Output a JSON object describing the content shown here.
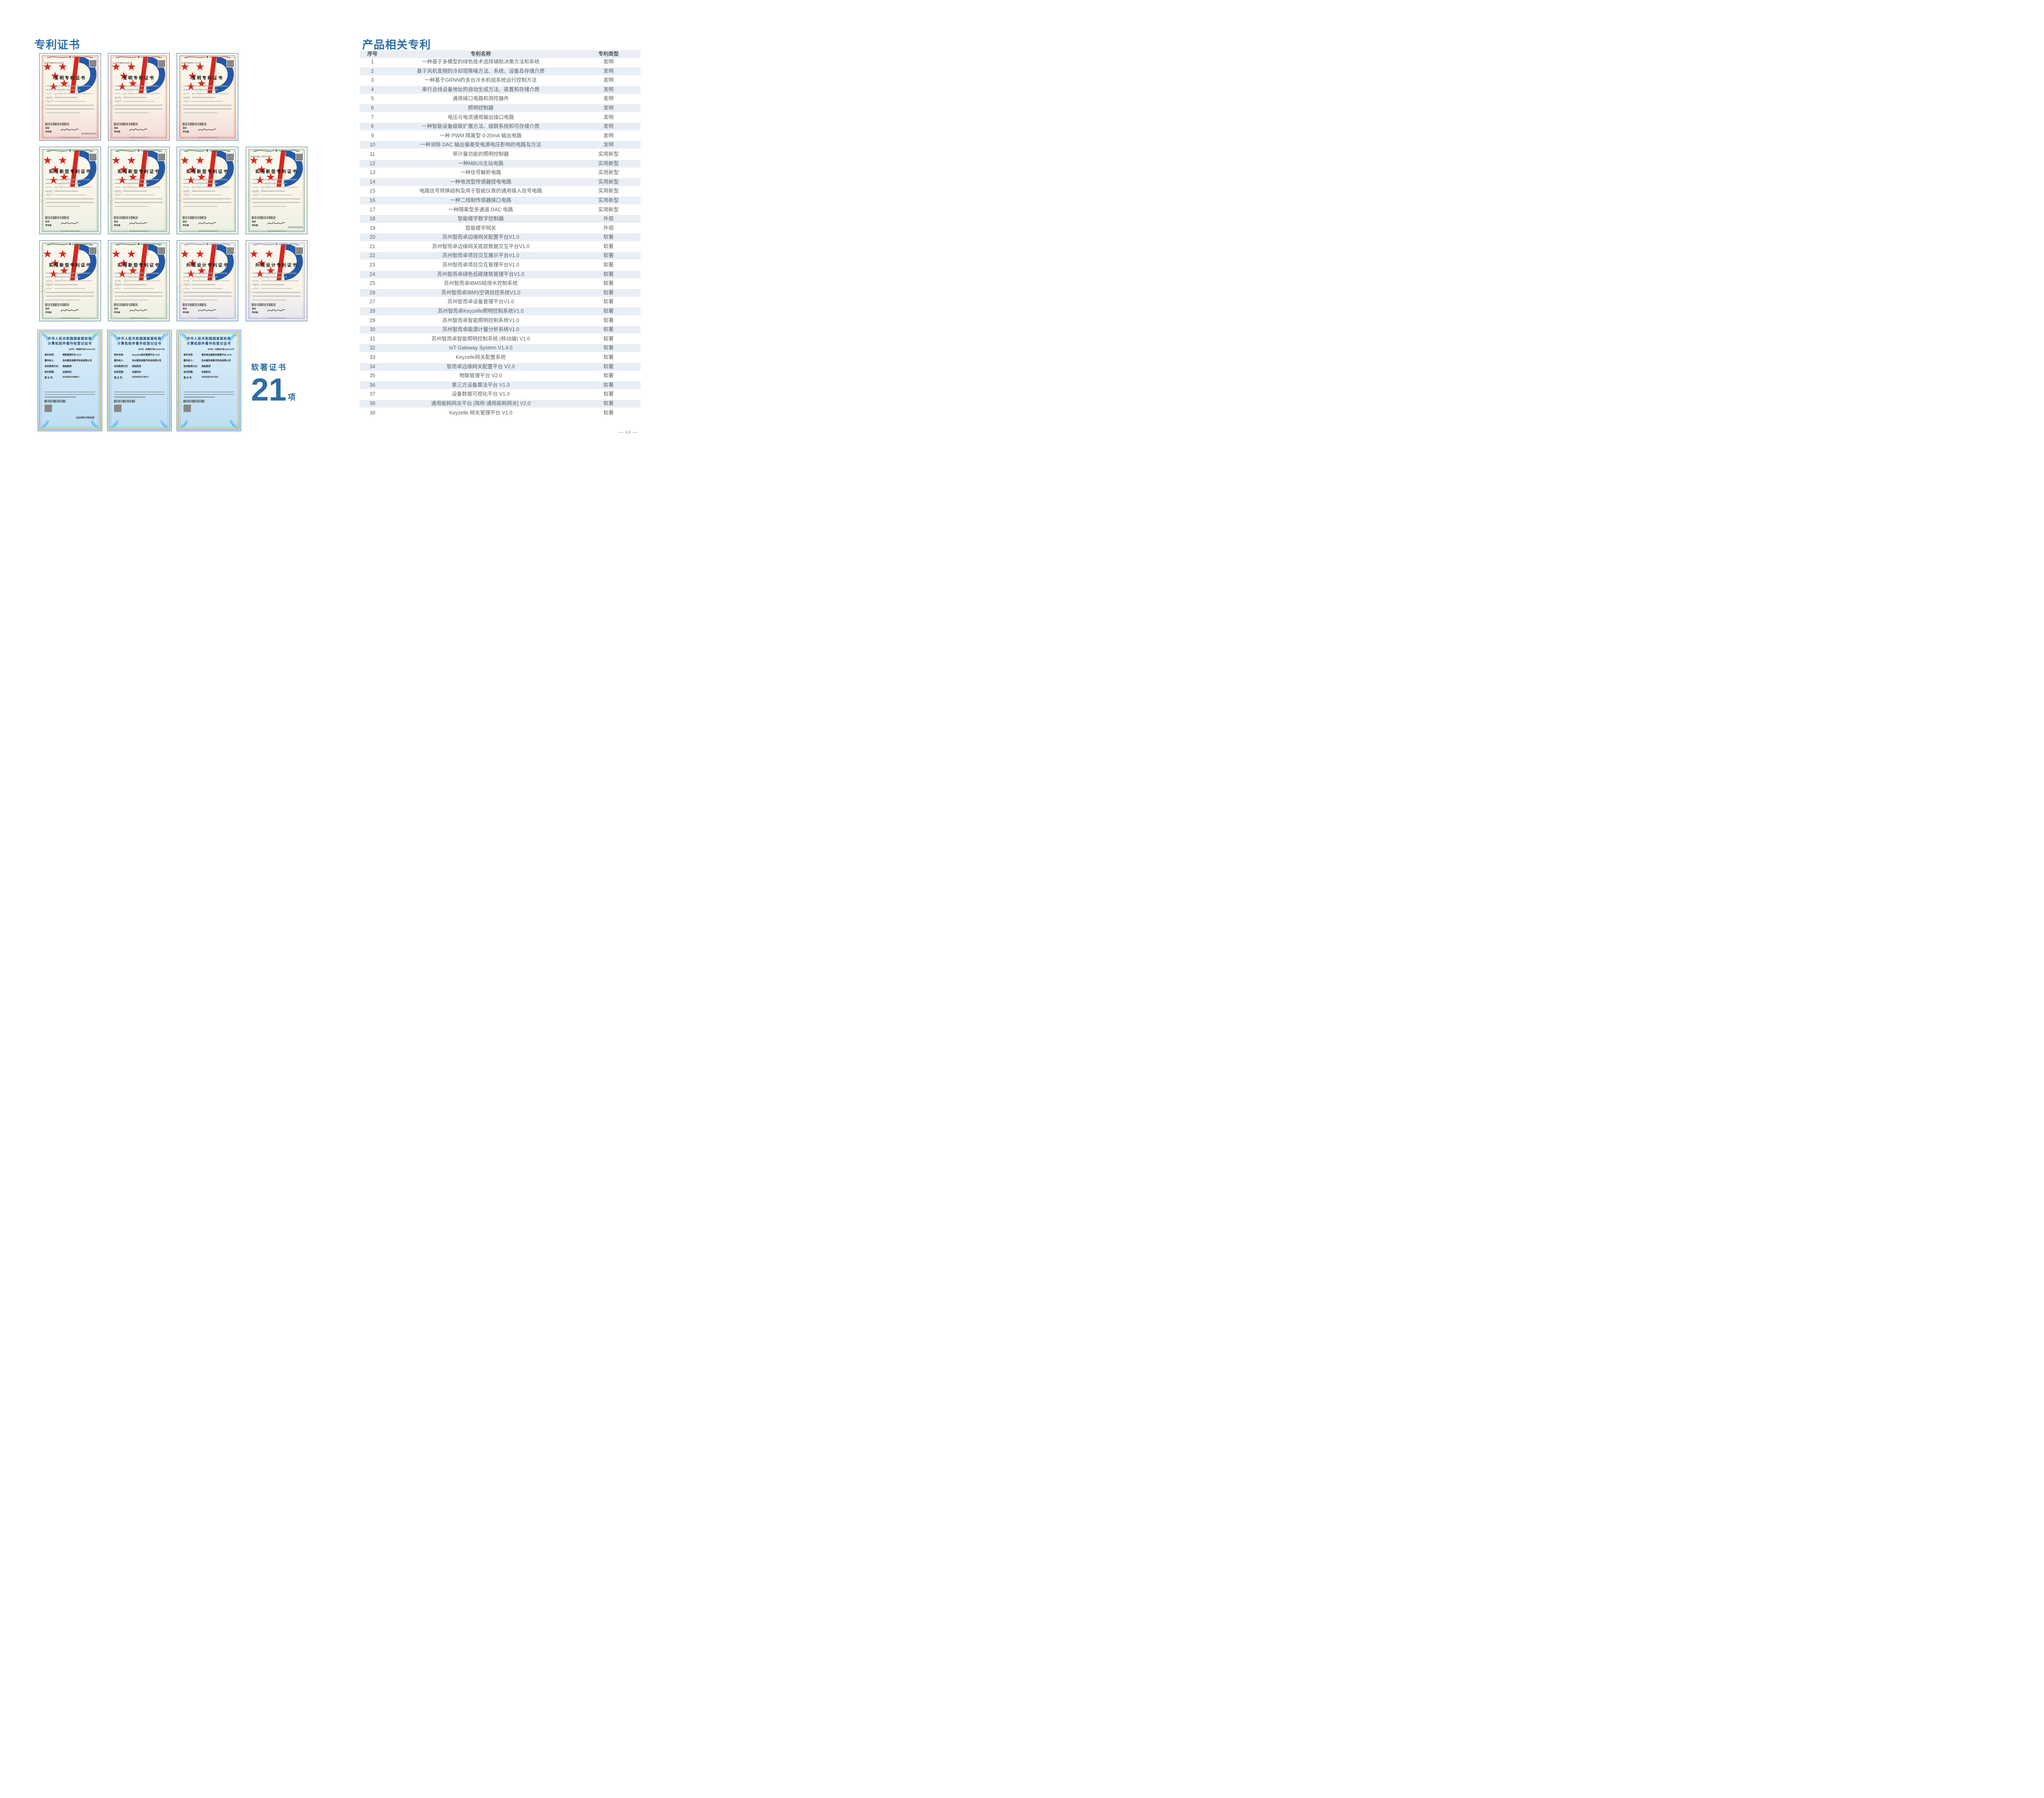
{
  "page": {
    "page_number": "— 43 —"
  },
  "colors": {
    "heading_blue": "#2C6CA4",
    "table_stripe": "#E8EEF4",
    "table_text": "#5C6269",
    "invention_red": "#A6413B",
    "utility_green": "#2F6B4F",
    "design_violet": "#7780AF",
    "software_gold": "#C9A959",
    "software_bg": "#CBE5F6",
    "cert_cream": "#FBF6EC",
    "cert_border": "#447BAB"
  },
  "left": {
    "heading": "专利证书",
    "soft_summary": {
      "label": "软著证书",
      "count": "21",
      "unit": "项"
    },
    "certificates": {
      "watermark": "CNIPA",
      "rows": [
        {
          "items": [
            {
              "type": "invention",
              "title": "发明专利证书",
              "cert_no": "证书号第6661534号",
              "issuer_label": "局长",
              "issuer": "申长雨",
              "date": "2024年01月30日"
            },
            {
              "type": "invention",
              "title": "发明专利证书",
              "cert_no": "证书号第8000883号",
              "issuer_label": "局长",
              "issuer": "申长雨",
              "date": ""
            },
            {
              "type": "invention",
              "title": "发明专利证书",
              "cert_no": "证书号第6817761号",
              "issuer_label": "局长",
              "issuer": "申长雨",
              "date": ""
            }
          ]
        },
        {
          "items": [
            {
              "type": "utility",
              "title": "实用新型专利证书",
              "cert_no": "",
              "issuer_label": "局长",
              "issuer": "申长雨",
              "date": ""
            },
            {
              "type": "utility",
              "title": "实用新型专利证书",
              "cert_no": "",
              "issuer_label": "局长",
              "issuer": "申长雨",
              "date": ""
            },
            {
              "type": "utility",
              "title": "实用新型专利证书",
              "cert_no": "",
              "issuer_label": "局长",
              "issuer": "申长雨",
              "date": ""
            },
            {
              "type": "utility",
              "title": "实用新型专利证书",
              "cert_no": "证书号第17856548号",
              "issuer_label": "局长",
              "issuer": "申长雨",
              "date": "2022年11月22日"
            }
          ]
        },
        {
          "items": [
            {
              "type": "utility",
              "title": "实用新型专利证书",
              "cert_no": "",
              "issuer_label": "局长",
              "issuer": "申长雨",
              "date": ""
            },
            {
              "type": "utility",
              "title": "实用新型专利证书",
              "cert_no": "",
              "issuer_label": "局长",
              "issuer": "申长雨",
              "date": ""
            },
            {
              "type": "design",
              "title": "外观设计专利证书",
              "cert_no": "",
              "issuer_label": "局长",
              "issuer": "申长雨",
              "date": ""
            },
            {
              "type": "design",
              "title": "外观设计专利证书",
              "cert_no": "",
              "issuer_label": "局长",
              "issuer": "申长雨",
              "date": ""
            }
          ]
        },
        {
          "items": [
            {
              "type": "software",
              "title_line1": "中华人民共和国国家版权局",
              "title_line2": "计算机软件著作权登记证书",
              "cert_no": "证书号：软著登字第15865015号",
              "fields": [
                [
                  "软件名称:",
                  "物联管理平台 V2.0"
                ],
                [
                  "著作权人:",
                  "苏州智而卓数字科技有限公司"
                ],
                [
                  "权利取得方式:",
                  "原始取得"
                ],
                [
                  "权利范围:",
                  "全部权利"
                ],
                [
                  "登 记 号:",
                  "2025SR1208817"
                ]
              ],
              "date": "2025年07月09日"
            },
            {
              "type": "software",
              "title_line1": "中华人民共和国国家版权局",
              "title_line2": "计算机软件著作权登记证书",
              "cert_no": "证书号：软著登字第15835675号",
              "fields": [
                [
                  "软件名称:",
                  "Keyzelle网关管理平台 V1.0"
                ],
                [
                  "著作权人:",
                  "苏州智而卓数字科技有限公司"
                ],
                [
                  "权利取得方式:",
                  "原始取得"
                ],
                [
                  "权利范围:",
                  "全部权利"
                ],
                [
                  "登 记 号:",
                  "2025SR1179477"
                ]
              ],
              "date": ""
            },
            {
              "type": "software",
              "title_line1": "中华人民共和国国家版权局",
              "title_line2": "计算机软件著作权登记证书",
              "cert_no": "证书号：软著登字第15863449号",
              "fields": [
                [
                  "软件名称:",
                  "智而卓边缘网关配置平台 V2.0"
                ],
                [
                  "著作权人:",
                  "苏州智而卓数字科技有限公司"
                ],
                [
                  "权利取得方式:",
                  "原始取得"
                ],
                [
                  "权利范围:",
                  "全部权利"
                ],
                [
                  "登 记 号:",
                  "2025SR1207251"
                ]
              ],
              "date": ""
            }
          ]
        }
      ]
    }
  },
  "right": {
    "heading": "产品相关专利",
    "table": {
      "headers": [
        "序号",
        "专利名称",
        "专利类型"
      ],
      "rows": [
        [
          "1",
          "一种基于多模型的绿色技术选择辅助决策方法和系统",
          "发明"
        ],
        [
          "2",
          "基于风机变频的冷却塔降噪方法、系统、设备及存储介质",
          "发明"
        ],
        [
          "3",
          "一种基于GRNN的多台冷水机组系统运行控制方法",
          "发明"
        ],
        [
          "4",
          "串行总线设备地址的自动生成方法、装置和存储介质",
          "发明"
        ],
        [
          "5",
          "通用接口电路和测控器件",
          "发明"
        ],
        [
          "6",
          "照明控制器",
          "发明"
        ],
        [
          "7",
          "电压与电流通用输出接口电路",
          "发明"
        ],
        [
          "8",
          "一种智能设备级联扩展方法、级联系统和可存储介质",
          "发明"
        ],
        [
          "9",
          "一种 PWM 隔离型 0-20mA 输出电路",
          "发明"
        ],
        [
          "10",
          "一种消除 DAC 输出偏差受电源电压影响的电路及方法",
          "发明"
        ],
        [
          "11",
          "带计量功能的照明控制器",
          "实用新型"
        ],
        [
          "12",
          "一种MBUS主站电路",
          "实用新型"
        ],
        [
          "13",
          "一种信号解析电路",
          "实用新型"
        ],
        [
          "14",
          "一种电流型传感器授电电路",
          "实用新型"
        ],
        [
          "15",
          "电路信号转换结构及用于智能仪表的通用接入信号电路",
          "实用新型"
        ],
        [
          "16",
          "一种二线制传感器接口电路",
          "实用新型"
        ],
        [
          "17",
          "一种隔离型多通道 DAC 电路",
          "实用新型"
        ],
        [
          "18",
          "智能楼宇数字控制器",
          "外观"
        ],
        [
          "19",
          "智能楼宇网关",
          "外观"
        ],
        [
          "20",
          "苏州智而卓边缘网关配置平台V1.0",
          "软著"
        ],
        [
          "21",
          "苏州智而卓边缘网关底层数据交互平台V1.0",
          "软著"
        ],
        [
          "22",
          "苏州智而卓项目交互展示平台V1.0",
          "软著"
        ],
        [
          "23",
          "苏州智而卓项目交互管理平台V1.0",
          "软著"
        ],
        [
          "24",
          "苏州智而卓绿色低碳建筑管理平台V1.0",
          "软著"
        ],
        [
          "25",
          "苏州智而卓IBMS给排水控制系统",
          "软著"
        ],
        [
          "26",
          "苏州智而卓IBMS空调自控系统V1.0",
          "软著"
        ],
        [
          "27",
          "苏州智而卓设备管理平台V1.0",
          "软著"
        ],
        [
          "28",
          "苏州智而卓Keyzelle照明控制系统V1.0",
          "软著"
        ],
        [
          "29",
          "苏州智而卓智能照明控制系统V1.0",
          "软著"
        ],
        [
          "30",
          "苏州智而卓能源计量分析系统V1.0",
          "软著"
        ],
        [
          "31",
          "苏州智而卓智能照明控制系统 (移动端) V1.0",
          "软著"
        ],
        [
          "32",
          "IoT Gateway System V1.4.0",
          "软著"
        ],
        [
          "33",
          "Keyzelle网关配置系统",
          "软著"
        ],
        [
          "34",
          "智而卓边缘网关配置平台 V2.0",
          "软著"
        ],
        [
          "35",
          "物联管理平台 V2.0",
          "软著"
        ],
        [
          "36",
          "第三方设备算法平台 V1.0",
          "软著"
        ],
        [
          "37",
          "设备数据可视化平台 V1.0",
          "软著"
        ],
        [
          "38",
          "通用能耗网关平台 [简称:通用能耗网关] V2.0",
          "软著"
        ],
        [
          "39",
          "Keyzelle 网关管理平台 V1.0",
          "软著"
        ]
      ]
    }
  }
}
